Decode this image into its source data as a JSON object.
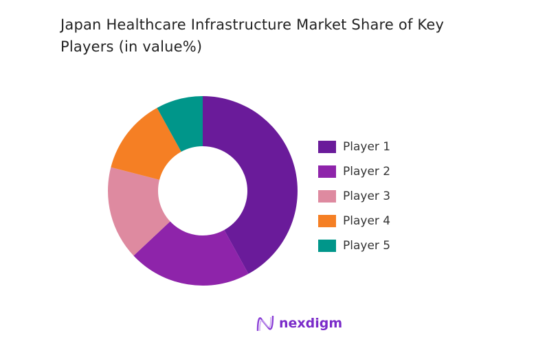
{
  "chart_data": {
    "type": "pie",
    "variant": "donut",
    "title": "Japan Healthcare Infrastructure Market Share of Key Players (in value%)",
    "categories": [
      "Player 1",
      "Player 2",
      "Player 3",
      "Player 4",
      "Player 5"
    ],
    "values": [
      42,
      21,
      16,
      13,
      8
    ],
    "colors": [
      "#6a1b9a",
      "#8e24aa",
      "#de8aa0",
      "#f57f24",
      "#00968a"
    ],
    "legend_position": "right"
  },
  "brand": {
    "name": "nexdigm",
    "color": "#7a2bc9"
  }
}
